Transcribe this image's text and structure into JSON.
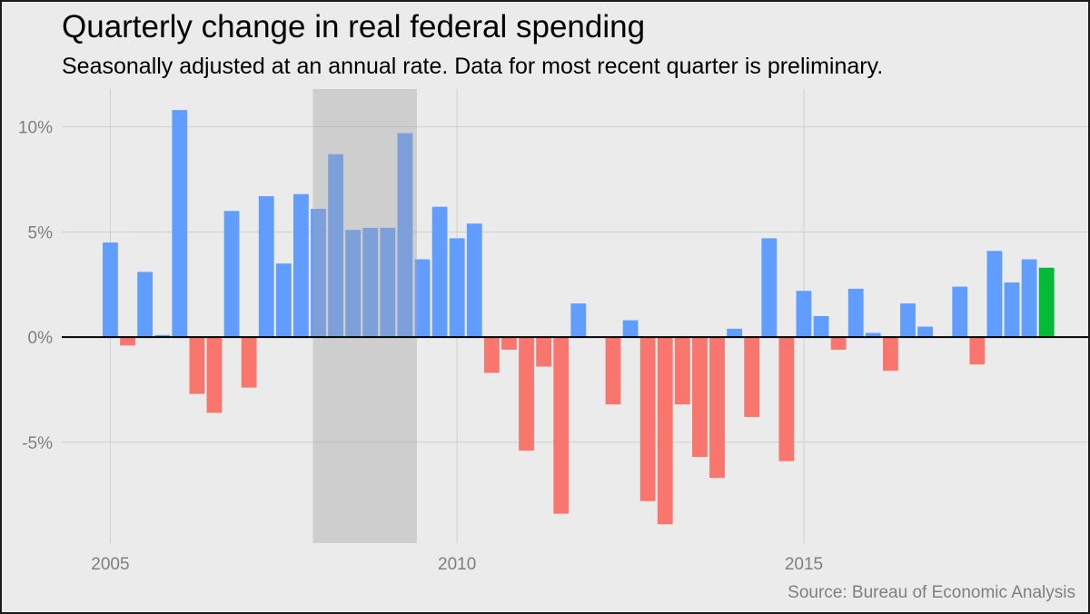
{
  "chart_data": {
    "type": "bar",
    "title": "Quarterly change in real federal spending",
    "subtitle": "Seasonally adjusted at an annual rate. Data for most recent quarter is preliminary.",
    "source": "Source: Bureau of Economic Analysis",
    "xlabel": "",
    "ylabel": "",
    "x_start": 2005.0,
    "x_step": 0.25,
    "values": [
      4.5,
      -0.4,
      3.1,
      0.1,
      10.8,
      -2.7,
      -3.6,
      6.0,
      -2.4,
      6.7,
      3.5,
      6.8,
      6.1,
      8.7,
      5.1,
      5.2,
      5.2,
      9.7,
      3.7,
      6.2,
      4.7,
      5.4,
      -1.7,
      -0.6,
      -5.4,
      -1.4,
      -8.4,
      1.6,
      0.0,
      -3.2,
      0.8,
      -7.8,
      -8.9,
      -3.2,
      -5.7,
      -6.7,
      0.4,
      -3.8,
      4.7,
      -5.9,
      2.2,
      1.0,
      -0.6,
      2.3,
      0.2,
      -1.6,
      1.6,
      0.5,
      0.0,
      2.4,
      -1.3,
      4.1,
      2.6,
      3.7,
      3.3
    ],
    "preliminary_index": 54,
    "colors": {
      "positive": "#619cff",
      "negative": "#f8766d",
      "preliminary": "#00ba38",
      "recession": "#a6a6a6"
    },
    "recession": {
      "start": 2007.92,
      "end": 2009.42
    },
    "ylim": [
      -9.8,
      11.8
    ],
    "xlim": [
      2004.3,
      2019.1
    ],
    "y_ticks": [
      10,
      5,
      0,
      -5
    ],
    "y_tick_labels": [
      "10%",
      "5%",
      "0%",
      "-5%"
    ],
    "x_ticks": [
      2005,
      2010,
      2015
    ],
    "x_tick_labels": [
      "2005",
      "2010",
      "2015"
    ],
    "grid": true,
    "legend": "none"
  }
}
